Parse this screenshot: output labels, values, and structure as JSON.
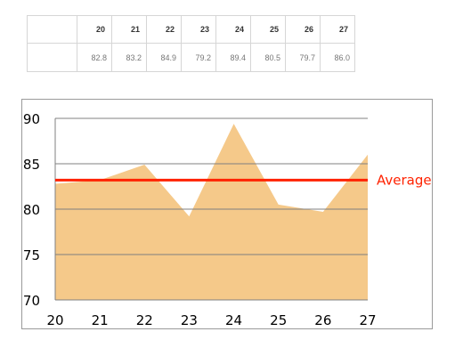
{
  "table": {
    "corner": "",
    "headers": [
      "20",
      "21",
      "22",
      "23",
      "24",
      "25",
      "26",
      "27"
    ],
    "values": [
      "82.8",
      "83.2",
      "84.9",
      "79.2",
      "89.4",
      "80.5",
      "79.7",
      "86.0"
    ]
  },
  "chart_data": {
    "type": "area",
    "title": "",
    "xlabel": "",
    "ylabel": "",
    "x": [
      20,
      21,
      22,
      23,
      24,
      25,
      26,
      27
    ],
    "series": [
      {
        "values": [
          82.8,
          83.2,
          84.9,
          79.2,
          89.4,
          80.5,
          79.7,
          86.0
        ],
        "color": "#f5c98a"
      }
    ],
    "reference_line": {
      "label": "Average",
      "value": 83.2,
      "color": "#ff2200"
    },
    "ylim": [
      70,
      90
    ],
    "yticks": [
      70,
      75,
      80,
      85,
      90
    ],
    "xlim": [
      20,
      27
    ],
    "xticks": [
      20,
      21,
      22,
      23,
      24,
      25,
      26,
      27
    ],
    "grid": "horizontal",
    "gridline_color": "#808080",
    "fill_color": "#f5c98a"
  }
}
